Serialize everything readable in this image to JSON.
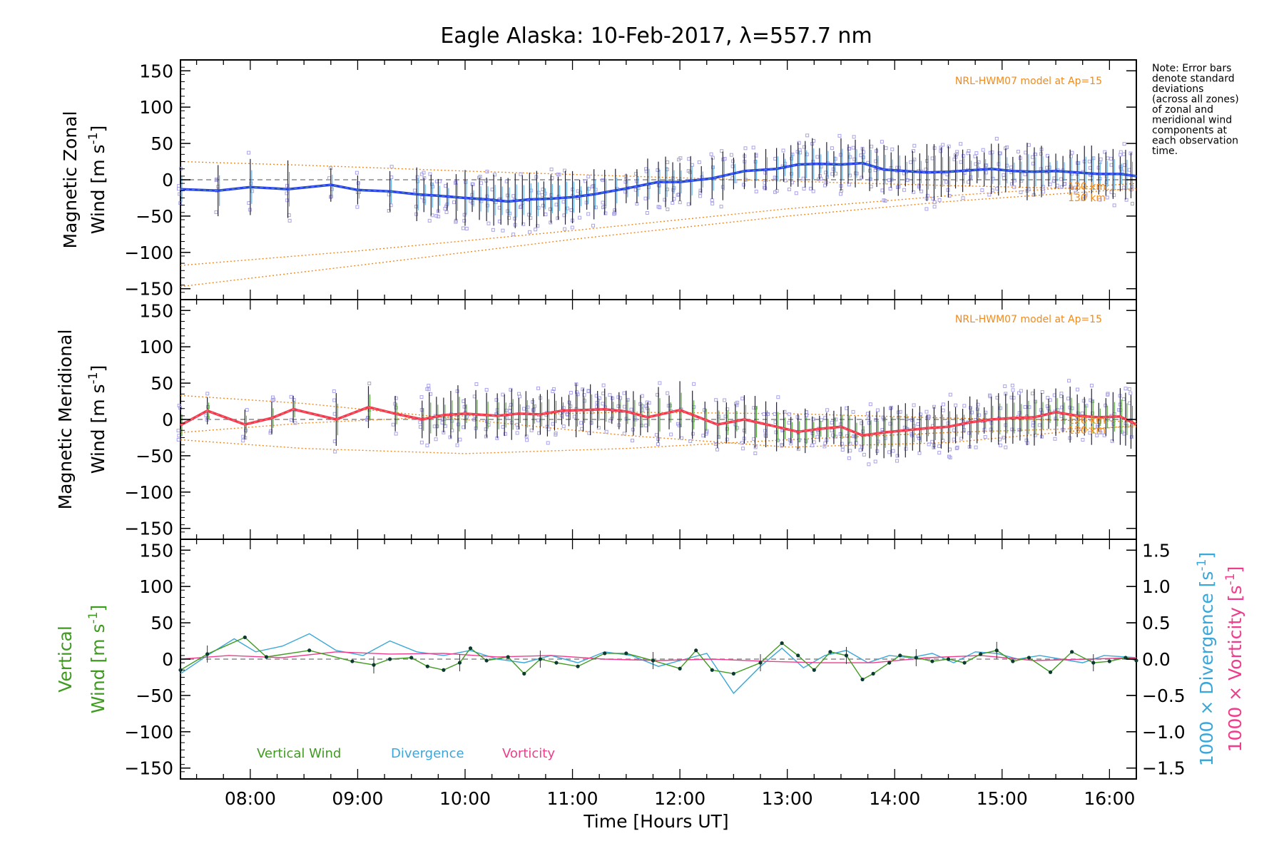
{
  "title": "Eagle Alaska: 10-Feb-2017, λ=557.7 nm",
  "note": [
    "Note: Error bars",
    "denote standard",
    "deviations",
    "(across all zones)",
    "of zonal and",
    "meridional wind",
    "components at",
    "each observation",
    "time."
  ],
  "colors": {
    "zonal": "#2a3fe0",
    "zonal_light": "#4aa8e0",
    "meridional": "#f0384a",
    "meridional_light": "#ff7a8a",
    "model": "#f08a1c",
    "scatter": "#a9a3e8",
    "vertical": "#3f9b20",
    "divergence": "#3ba7d9",
    "vorticity": "#f03c8c",
    "zero": "#8a8a8a"
  },
  "chart_data": [
    {
      "type": "line",
      "panel": "zonal",
      "xlabel": "",
      "ylabel_line1": "Magnetic Zonal",
      "ylabel_line2": "Wind [m s",
      "ylabel_sup": "-1",
      "ylabel_end": "]",
      "ylim": [
        -165,
        165
      ],
      "yticks": [
        150,
        100,
        50,
        0,
        -50,
        -100,
        -150
      ],
      "model_label": "NRL-HWM07 model at Ap=15",
      "model_alt_labels": [
        "120 km",
        "130 km"
      ],
      "series": [
        {
          "kind": "wind",
          "x": [
            7.35,
            7.7,
            8.0,
            8.35,
            8.75,
            9.0,
            9.3,
            9.55,
            9.75,
            10.0,
            10.2,
            10.4,
            10.6,
            10.8,
            11.0,
            11.2,
            11.5,
            11.8,
            12.0,
            12.3,
            12.6,
            12.9,
            13.1,
            13.3,
            13.5,
            13.7,
            13.9,
            14.1,
            14.3,
            14.5,
            14.7,
            14.9,
            15.1,
            15.3,
            15.5,
            15.7,
            15.9,
            16.1,
            16.25
          ],
          "y": [
            -13,
            -15,
            -10,
            -13,
            -7,
            -14,
            -16,
            -20,
            -22,
            -25,
            -27,
            -30,
            -27,
            -26,
            -24,
            -20,
            -12,
            -3,
            -3,
            2,
            12,
            15,
            21,
            22,
            21,
            23,
            14,
            12,
            10,
            11,
            13,
            15,
            12,
            11,
            12,
            10,
            8,
            8,
            5
          ]
        },
        {
          "kind": "model",
          "x": [
            7.35,
            9.0,
            11.0,
            13.0,
            14.5,
            16.25
          ],
          "y": [
            -118,
            -98,
            -70,
            -40,
            -22,
            -5
          ]
        },
        {
          "kind": "model",
          "x": [
            7.35,
            9.0,
            11.0,
            13.0,
            14.5,
            16.25
          ],
          "y": [
            -147,
            -118,
            -82,
            -50,
            -30,
            -12
          ]
        },
        {
          "kind": "model",
          "x": [
            7.35,
            8.5,
            10.0,
            11.5,
            13.0,
            14.5,
            16.25
          ],
          "y": [
            25,
            20,
            12,
            5,
            -2,
            -8,
            -14
          ]
        }
      ]
    },
    {
      "type": "line",
      "panel": "meridional",
      "xlabel": "",
      "ylabel_line1": "Magnetic Meridional",
      "ylabel_line2": "Wind [m s",
      "ylabel_sup": "-1",
      "ylabel_end": "]",
      "ylim": [
        -165,
        165
      ],
      "yticks": [
        150,
        100,
        50,
        0,
        -50,
        -100,
        -150
      ],
      "model_label": "NRL-HWM07 model at Ap=15",
      "model_alt_labels": [
        "120 km",
        "130 km"
      ],
      "series": [
        {
          "kind": "wind",
          "x": [
            7.35,
            7.6,
            7.95,
            8.2,
            8.4,
            8.8,
            9.1,
            9.35,
            9.6,
            9.8,
            10.0,
            10.3,
            10.5,
            10.7,
            10.9,
            11.1,
            11.3,
            11.5,
            11.7,
            12.0,
            12.35,
            12.6,
            12.9,
            13.1,
            13.3,
            13.5,
            13.7,
            13.9,
            14.1,
            14.3,
            14.5,
            14.7,
            14.9,
            15.1,
            15.3,
            15.5,
            15.7,
            15.9,
            16.1,
            16.25
          ],
          "y": [
            -8,
            12,
            -7,
            2,
            14,
            0,
            17,
            8,
            0,
            6,
            8,
            5,
            8,
            7,
            12,
            13,
            14,
            11,
            3,
            13,
            -7,
            0,
            -10,
            -17,
            -13,
            -10,
            -22,
            -18,
            -15,
            -12,
            -10,
            -4,
            0,
            2,
            3,
            10,
            5,
            3,
            4,
            -7
          ]
        },
        {
          "kind": "model",
          "x": [
            7.35,
            8.5,
            10.0,
            11.5,
            13.0,
            14.5,
            16.25
          ],
          "y": [
            33,
            22,
            0,
            -22,
            -38,
            -32,
            -8
          ]
        },
        {
          "kind": "model",
          "x": [
            7.35,
            8.5,
            10.0,
            11.5,
            13.0,
            14.5,
            16.25
          ],
          "y": [
            -28,
            -40,
            -47,
            -40,
            -28,
            -18,
            -10
          ]
        },
        {
          "kind": "model",
          "x": [
            7.35,
            8.5,
            10.0,
            11.5,
            13.0,
            14.5,
            16.25
          ],
          "y": [
            -18,
            -5,
            5,
            10,
            8,
            2,
            -3
          ]
        }
      ]
    },
    {
      "type": "line",
      "panel": "vertical",
      "xlabel": "Time [Hours UT]",
      "xticks": [
        "08:00",
        "09:00",
        "10:00",
        "11:00",
        "12:00",
        "13:00",
        "14:00",
        "15:00",
        "16:00"
      ],
      "xtick_values": [
        8,
        9,
        10,
        11,
        12,
        13,
        14,
        15,
        16
      ],
      "xlim": [
        7.35,
        16.25
      ],
      "ylabel_line1": "Vertical",
      "ylabel_line2": "Wind [m s",
      "ylabel_sup": "-1",
      "ylabel_end": "]",
      "ylim": [
        -165,
        165
      ],
      "yticks": [
        150,
        100,
        50,
        0,
        -50,
        -100,
        -150
      ],
      "y2lim": [
        -1.65,
        1.65
      ],
      "y2ticks": [
        "1.5",
        "1.0",
        "0.5",
        "0.0",
        "−0.5",
        "−1.0",
        "−1.5"
      ],
      "y2label_div": "1000 × Divergence [s",
      "y2label_vor": "1000 × Vorticity [s",
      "y2label_sup": "-1",
      "y2label_end": "]",
      "legend": [
        "Vertical Wind",
        "Divergence",
        "Vorticity"
      ],
      "series": [
        {
          "name": "Vertical Wind",
          "x": [
            7.35,
            7.6,
            7.95,
            8.15,
            8.55,
            8.95,
            9.15,
            9.3,
            9.5,
            9.65,
            9.8,
            9.95,
            10.05,
            10.2,
            10.4,
            10.55,
            10.7,
            10.85,
            11.05,
            11.3,
            11.5,
            11.75,
            12.0,
            12.15,
            12.3,
            12.5,
            12.75,
            12.95,
            13.1,
            13.25,
            13.4,
            13.55,
            13.7,
            13.8,
            13.95,
            14.05,
            14.2,
            14.35,
            14.5,
            14.65,
            14.8,
            14.95,
            15.1,
            15.25,
            15.45,
            15.65,
            15.85,
            16.0,
            16.15,
            16.25
          ],
          "y": [
            -15,
            7,
            30,
            3,
            12,
            -3,
            -8,
            0,
            2,
            -10,
            -15,
            -5,
            15,
            -2,
            3,
            -20,
            0,
            -5,
            -10,
            8,
            8,
            -2,
            -13,
            12,
            -15,
            -20,
            -5,
            22,
            5,
            -15,
            10,
            5,
            -28,
            -20,
            -5,
            5,
            2,
            -3,
            0,
            -5,
            7,
            12,
            -3,
            2,
            -18,
            10,
            -5,
            -3,
            2,
            -2
          ]
        },
        {
          "name": "Divergence",
          "x": [
            7.35,
            7.6,
            7.85,
            8.05,
            8.3,
            8.55,
            8.8,
            9.05,
            9.3,
            9.55,
            9.8,
            10.05,
            10.3,
            10.55,
            10.8,
            11.05,
            11.3,
            11.55,
            11.8,
            12.05,
            12.25,
            12.5,
            12.75,
            12.95,
            13.15,
            13.35,
            13.55,
            13.75,
            13.95,
            14.15,
            14.35,
            14.55,
            14.75,
            14.95,
            15.15,
            15.35,
            15.55,
            15.75,
            15.95,
            16.25
          ],
          "y": [
            -0.2,
            0.05,
            0.28,
            0.1,
            0.18,
            0.35,
            0.12,
            0.05,
            0.25,
            0.1,
            0.05,
            0.12,
            0.0,
            -0.05,
            0.05,
            -0.05,
            0.1,
            0.05,
            -0.1,
            0.0,
            0.08,
            -0.47,
            -0.1,
            0.15,
            -0.12,
            0.05,
            0.12,
            -0.05,
            0.05,
            0.02,
            0.08,
            -0.05,
            0.1,
            0.08,
            0.0,
            0.05,
            0.0,
            -0.05,
            0.05,
            0.02
          ]
        },
        {
          "name": "Vorticity",
          "x": [
            7.35,
            7.8,
            8.3,
            8.8,
            9.3,
            9.8,
            10.3,
            10.8,
            11.3,
            11.8,
            12.3,
            12.8,
            13.3,
            13.8,
            14.3,
            14.8,
            15.3,
            15.8,
            16.25
          ],
          "y": [
            0.0,
            0.05,
            0.02,
            0.1,
            0.07,
            0.08,
            0.03,
            0.05,
            0.0,
            -0.02,
            0.0,
            -0.03,
            -0.05,
            -0.05,
            0.02,
            0.05,
            -0.02,
            0.0,
            0.02
          ]
        }
      ]
    }
  ]
}
